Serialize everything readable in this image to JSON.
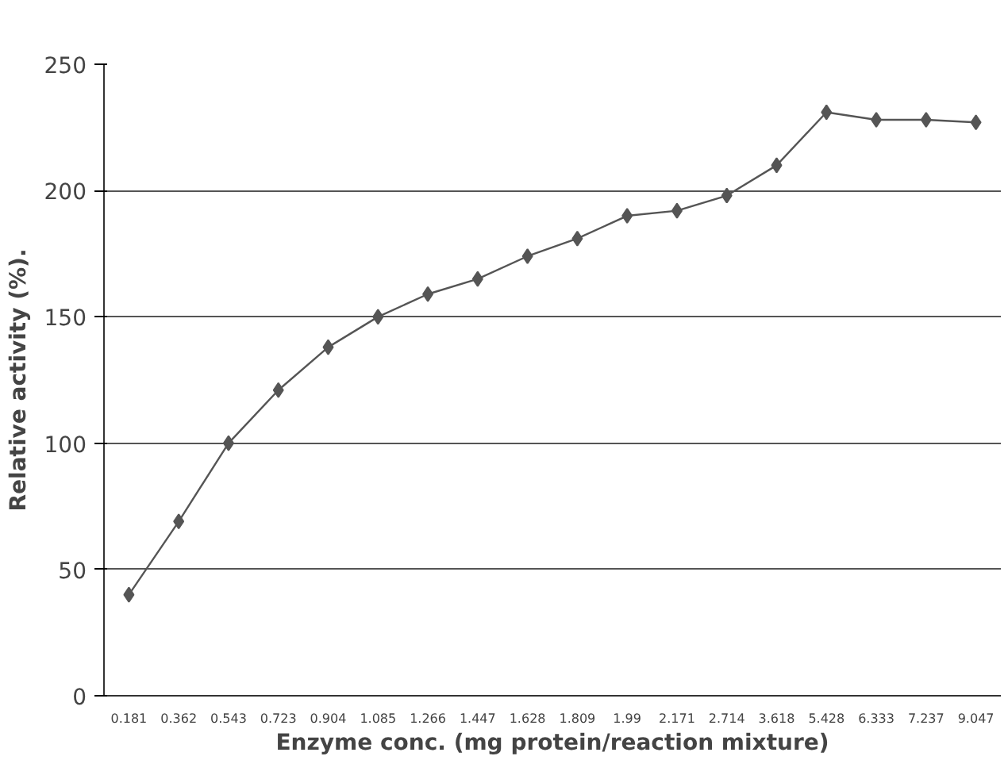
{
  "chart_data": {
    "type": "line",
    "xlabel": "Enzyme conc. (mg protein/reaction mixture)",
    "ylabel": "Relative activity (%).",
    "categories": [
      "0.181",
      "0.362",
      "0.543",
      "0.723",
      "0.904",
      "1.085",
      "1.266",
      "1.447",
      "1.628",
      "1.809",
      "1.99",
      "2.171",
      "2.714",
      "3.618",
      "5.428",
      "6.333",
      "7.237",
      "9.047"
    ],
    "series": [
      {
        "color": "#555555",
        "values": [
          40,
          69,
          100,
          121,
          138,
          150,
          159,
          165,
          174,
          181,
          190,
          192,
          198,
          210,
          231,
          228,
          228,
          227
        ]
      }
    ],
    "ylim": [
      0,
      250
    ],
    "yticks": [
      0,
      50,
      100,
      150,
      200,
      250
    ],
    "grid": "y",
    "marker": "diamond",
    "line_style": "solid"
  }
}
